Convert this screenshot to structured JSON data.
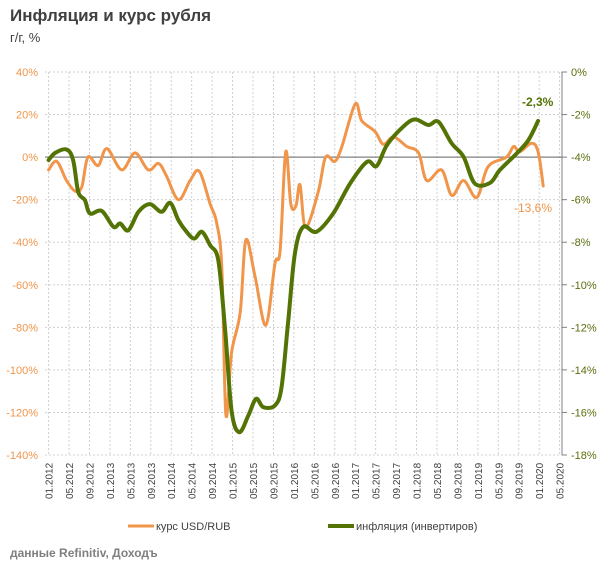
{
  "chart_data": {
    "type": "line",
    "title": "Инфляция и курс рубля",
    "subtitle": "г/г, %",
    "source": "данные Refinitiv, Доходъ",
    "x_unit": "months since 01.2012",
    "x_tick_labels": [
      "01.2012",
      "05.2012",
      "09.2012",
      "01.2013",
      "05.2013",
      "09.2013",
      "01.2014",
      "05.2014",
      "09.2014",
      "01.2015",
      "05.2015",
      "09.2015",
      "01.2016",
      "05.2016",
      "09.2016",
      "01.2017",
      "05.2017",
      "09.2017",
      "01.2018",
      "05.2018",
      "09.2018",
      "01.2019",
      "05.2019",
      "09.2019",
      "01.2020",
      "05.2020"
    ],
    "y_left": {
      "range": [
        -140,
        40
      ],
      "ticks": [
        40,
        20,
        0,
        -20,
        -40,
        -60,
        -80,
        -100,
        -120,
        -140
      ],
      "tick_labels": [
        "40%",
        "20%",
        "0%",
        "-20%",
        "-40%",
        "-60%",
        "-80%",
        "-100%",
        "-120%",
        "-140%"
      ]
    },
    "y_right": {
      "range": [
        -18,
        0
      ],
      "ticks": [
        0,
        -2,
        -4,
        -6,
        -8,
        -10,
        -12,
        -14,
        -16,
        -18
      ],
      "tick_labels": [
        "0%",
        "-2%",
        "-4%",
        "-6%",
        "-8%",
        "-10%",
        "-12%",
        "-14%",
        "-16%",
        "-18%"
      ]
    },
    "grid": true,
    "legend_position": "bottom",
    "series": [
      {
        "name": "курс USD/RUB",
        "axis": "left",
        "color": "#f0954a",
        "x": [
          0,
          1.6,
          3.5,
          5.2,
          6.5,
          7.7,
          9.7,
          11.4,
          14.3,
          16.9,
          19.5,
          21.5,
          23,
          25.4,
          27.7,
          29.5,
          31.6,
          32.9,
          33.9,
          34.7,
          35.8,
          37.5,
          38.6,
          40.4,
          42.5,
          44.3,
          45.3,
          46.4,
          47.4,
          48.4,
          49.2,
          50.3,
          52.8,
          54.2,
          56,
          57.4,
          60,
          61.3,
          63.9,
          65.5,
          67.5,
          70.1,
          72.4,
          74,
          76.9,
          78.9,
          81.2,
          83.8,
          86,
          89.6,
          91,
          92.2,
          94.5,
          95.8,
          96.8
        ],
        "y": [
          -6,
          -2,
          -11,
          -16,
          -14,
          0,
          -4,
          4,
          -6,
          2,
          -6,
          -3,
          -8.5,
          -20,
          -11,
          -6.6,
          -22,
          -31,
          -52,
          -121,
          -92,
          -73,
          -39,
          -56,
          -79,
          -50,
          -44,
          2.5,
          -22,
          -23,
          -13,
          -33,
          -16,
          0,
          -2,
          5,
          25,
          17,
          12,
          6,
          9.5,
          5,
          2,
          -11,
          -6,
          -18,
          -11,
          -19,
          -4.5,
          0,
          5,
          2.5,
          6.5,
          2.5,
          -13.6
        ],
        "end_label": "-13,6%"
      },
      {
        "name": "инфляция (инвертиров)",
        "axis": "right",
        "color": "#537305",
        "x": [
          0,
          1.3,
          3.5,
          4.8,
          5.8,
          7.1,
          8.1,
          10.4,
          12.7,
          14,
          15.6,
          17.6,
          19.8,
          22.1,
          23.8,
          25.4,
          27,
          28.5,
          30,
          31.6,
          33.2,
          34.5,
          35.8,
          37.3,
          39.1,
          40.6,
          42,
          44.3,
          45.6,
          46.9,
          48.2,
          49.8,
          52.4,
          55.7,
          59,
          62.3,
          64.2,
          66.2,
          69.4,
          71.7,
          74.3,
          76.3,
          78.9,
          81.2,
          83.4,
          86.4,
          88.3,
          91.6,
          93.9,
          95.8
        ],
        "y": [
          -4.14,
          -3.8,
          -3.64,
          -4.14,
          -5.63,
          -6.02,
          -6.65,
          -6.53,
          -7.28,
          -7.12,
          -7.44,
          -6.57,
          -6.21,
          -6.57,
          -6.15,
          -6.96,
          -7.51,
          -7.83,
          -7.51,
          -8.14,
          -8.85,
          -11.99,
          -15.9,
          -16.93,
          -16.14,
          -15.36,
          -15.75,
          -15.67,
          -14.8,
          -11.67,
          -8.53,
          -7.28,
          -7.51,
          -6.65,
          -5.24,
          -4.22,
          -4.42,
          -3.44,
          -2.57,
          -2.23,
          -2.49,
          -2.34,
          -3.36,
          -3.98,
          -5.24,
          -5.21,
          -4.61,
          -3.83,
          -3.2,
          -2.3
        ],
        "end_label": "-2,3%"
      }
    ]
  }
}
